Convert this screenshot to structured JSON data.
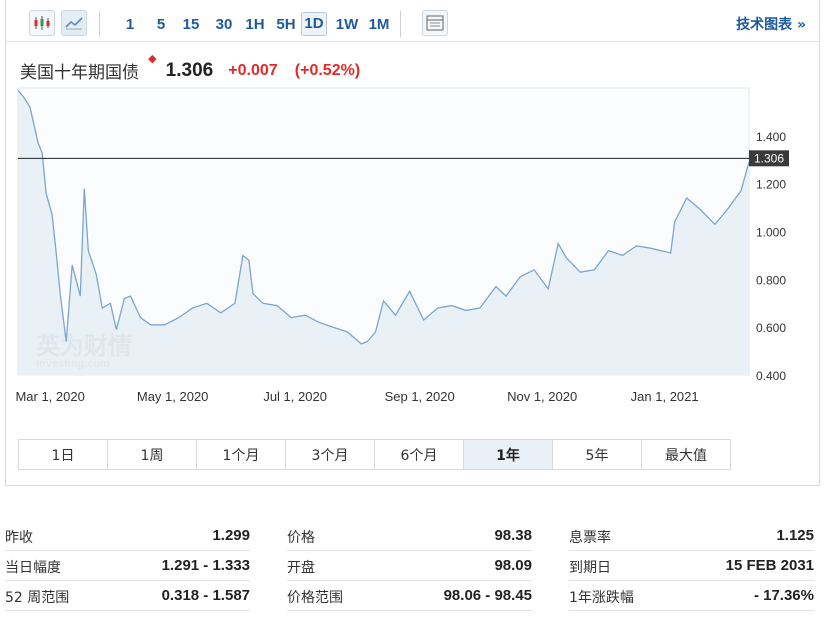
{
  "toolbar": {
    "intervals": [
      {
        "label": "1",
        "active": false
      },
      {
        "label": "5",
        "active": false
      },
      {
        "label": "15",
        "active": false
      },
      {
        "label": "30",
        "active": false
      },
      {
        "label": "1H",
        "active": false
      },
      {
        "label": "5H",
        "active": false
      },
      {
        "label": "1D",
        "active": true
      },
      {
        "label": "1W",
        "active": false
      },
      {
        "label": "1M",
        "active": false
      }
    ],
    "icons": [
      "candlestick-chart-icon",
      "line-chart-icon",
      "table-view-icon"
    ],
    "tech_chart_label": "技术图表 »"
  },
  "instrument": {
    "name": "美国十年期国债",
    "price": "1.306",
    "change": "+0.007",
    "change_pct": "(+0.52%)"
  },
  "colors": {
    "link": "#1f5a9e",
    "up": "#e12b2b",
    "line": "#7aa6cf",
    "area": "#e6eef4"
  },
  "watermark": {
    "text": "英为财情",
    "sub": "Investing.com"
  },
  "chart_data": {
    "type": "area",
    "x": [
      "2020-02-14",
      "2020-02-17",
      "2020-02-20",
      "2020-02-24",
      "2020-02-26",
      "2020-02-28",
      "2020-03-02",
      "2020-03-04",
      "2020-03-06",
      "2020-03-09",
      "2020-03-12",
      "2020-03-16",
      "2020-03-18",
      "2020-03-20",
      "2020-03-24",
      "2020-03-27",
      "2020-03-31",
      "2020-04-03",
      "2020-04-07",
      "2020-04-10",
      "2020-04-15",
      "2020-04-20",
      "2020-04-27",
      "2020-05-04",
      "2020-05-11",
      "2020-05-18",
      "2020-05-25",
      "2020-06-01",
      "2020-06-05",
      "2020-06-08",
      "2020-06-10",
      "2020-06-15",
      "2020-06-22",
      "2020-06-29",
      "2020-07-06",
      "2020-07-13",
      "2020-07-20",
      "2020-07-27",
      "2020-08-03",
      "2020-08-06",
      "2020-08-10",
      "2020-08-14",
      "2020-08-20",
      "2020-08-27",
      "2020-09-03",
      "2020-09-10",
      "2020-09-17",
      "2020-09-24",
      "2020-10-01",
      "2020-10-09",
      "2020-10-14",
      "2020-10-21",
      "2020-10-28",
      "2020-11-04",
      "2020-11-09",
      "2020-11-13",
      "2020-11-20",
      "2020-11-27",
      "2020-12-04",
      "2020-12-11",
      "2020-12-18",
      "2020-12-25",
      "2021-01-04",
      "2021-01-06",
      "2021-01-12",
      "2021-01-19",
      "2021-01-26",
      "2021-02-01",
      "2021-02-08",
      "2021-02-12"
    ],
    "values": [
      1.59,
      1.56,
      1.52,
      1.37,
      1.33,
      1.16,
      1.07,
      0.91,
      0.74,
      0.54,
      0.86,
      0.73,
      1.18,
      0.92,
      0.82,
      0.68,
      0.7,
      0.59,
      0.72,
      0.73,
      0.64,
      0.61,
      0.61,
      0.64,
      0.68,
      0.7,
      0.66,
      0.7,
      0.9,
      0.88,
      0.74,
      0.7,
      0.69,
      0.64,
      0.65,
      0.62,
      0.6,
      0.58,
      0.53,
      0.54,
      0.58,
      0.71,
      0.65,
      0.75,
      0.63,
      0.68,
      0.69,
      0.67,
      0.68,
      0.77,
      0.73,
      0.81,
      0.84,
      0.76,
      0.95,
      0.89,
      0.83,
      0.84,
      0.92,
      0.9,
      0.94,
      0.93,
      0.91,
      1.04,
      1.14,
      1.09,
      1.03,
      1.09,
      1.17,
      1.29
    ],
    "current": 1.306,
    "xtick_labels": [
      "Mar 1, 2020",
      "May 1, 2020",
      "Jul 1, 2020",
      "Sep 1, 2020",
      "Nov 1, 2020",
      "Jan 1, 2021"
    ],
    "xtick_dates": [
      "2020-03-01",
      "2020-05-01",
      "2020-07-01",
      "2020-09-01",
      "2020-11-01",
      "2021-01-01"
    ],
    "ytick_labels": [
      "0.400",
      "0.600",
      "0.800",
      "1.000",
      "1.200",
      "1.400"
    ],
    "yticks": [
      0.4,
      0.6,
      0.8,
      1.0,
      1.2,
      1.4
    ],
    "ylim": [
      0.4,
      1.6
    ],
    "xlim": [
      "2020-02-14",
      "2021-02-12"
    ],
    "current_label": "1.306"
  },
  "ranges": [
    {
      "label": "1日",
      "active": false
    },
    {
      "label": "1周",
      "active": false
    },
    {
      "label": "1个月",
      "active": false
    },
    {
      "label": "3个月",
      "active": false
    },
    {
      "label": "6个月",
      "active": false
    },
    {
      "label": "1年",
      "active": true
    },
    {
      "label": "5年",
      "active": false
    },
    {
      "label": "最大值",
      "active": false
    }
  ],
  "stats": [
    [
      {
        "label": "昨收",
        "value": "1.299"
      },
      {
        "label": "当日幅度",
        "value": "1.291 - 1.333"
      },
      {
        "label": "52 周范围",
        "value": "0.318 - 1.587"
      }
    ],
    [
      {
        "label": "价格",
        "value": "98.38"
      },
      {
        "label": "开盘",
        "value": "98.09"
      },
      {
        "label": "价格范围",
        "value": "98.06 - 98.45"
      }
    ],
    [
      {
        "label": "息票率",
        "value": "1.125"
      },
      {
        "label": "到期日",
        "value": "15 FEB 2031"
      },
      {
        "label": "1年涨跌幅",
        "value": "- 17.36%"
      }
    ]
  ]
}
